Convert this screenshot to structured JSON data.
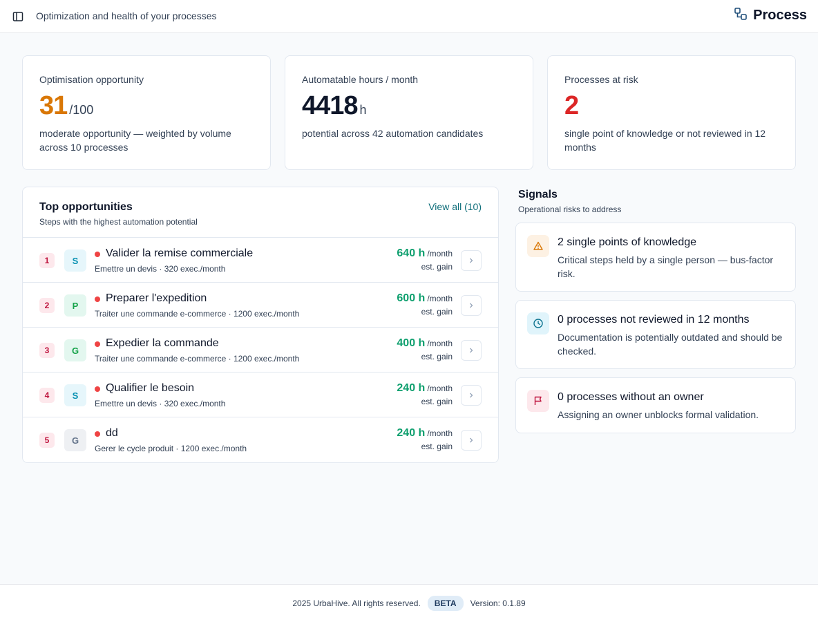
{
  "header": {
    "subtitle": "Optimization and health of your processes",
    "brand_title": "Process",
    "toggle_icon": "sidebar-toggle-icon",
    "brand_icon": "process-flow-icon"
  },
  "kpis": [
    {
      "label": "Optimisation opportunity",
      "value": "31",
      "unit": "/100",
      "description": "moderate opportunity — weighted by volume across 10 processes",
      "color": "#d97706"
    },
    {
      "label": "Automatable hours / month",
      "value": "4418",
      "unit": "h",
      "description": "potential across 42 automation candidates",
      "color": "#0f172a"
    },
    {
      "label": "Processes at risk",
      "value": "2",
      "unit": "",
      "description": "single point of knowledge or not reviewed in 12 months",
      "color": "#dc2626"
    }
  ],
  "opportunities": {
    "title": "Top opportunities",
    "subtitle": "Steps with the highest automation potential",
    "view_all": "View all (10)",
    "per_label": "/month",
    "est_label": "est. gain",
    "rows": [
      {
        "rank": "1",
        "avatar": "S",
        "name": "Valider la remise commerciale",
        "meta": "Emettre un devis · 320 exec./month",
        "gain": "640 h"
      },
      {
        "rank": "2",
        "avatar": "P",
        "name": "Preparer l'expedition",
        "meta": "Traiter une commande e-commerce · 1200 exec./month",
        "gain": "600 h"
      },
      {
        "rank": "3",
        "avatar": "G",
        "name": "Expedier la commande",
        "meta": "Traiter une commande e-commerce · 1200 exec./month",
        "gain": "400 h"
      },
      {
        "rank": "4",
        "avatar": "S",
        "name": "Qualifier le besoin",
        "meta": "Emettre un devis · 320 exec./month",
        "gain": "240 h"
      },
      {
        "rank": "5",
        "avatar": "G",
        "name": "dd",
        "meta": "Gerer le cycle produit · 1200 exec./month",
        "gain": "240 h"
      }
    ]
  },
  "signals": {
    "title": "Signals",
    "subtitle": "Operational risks to address",
    "items": [
      {
        "title": "2 single points of knowledge",
        "description": "Critical steps held by a single person — bus-factor risk.",
        "icon": "warning-icon"
      },
      {
        "title": "0 processes not reviewed in 12 months",
        "description": "Documentation is potentially outdated and should be checked.",
        "icon": "clock-icon"
      },
      {
        "title": "0 processes without an owner",
        "description": "Assigning an owner unblocks formal validation.",
        "icon": "flag-icon"
      }
    ]
  },
  "footer": {
    "copyright": "2025 UrbaHive. All rights reserved.",
    "badge": "BETA",
    "version": "Version: 0.1.89"
  }
}
